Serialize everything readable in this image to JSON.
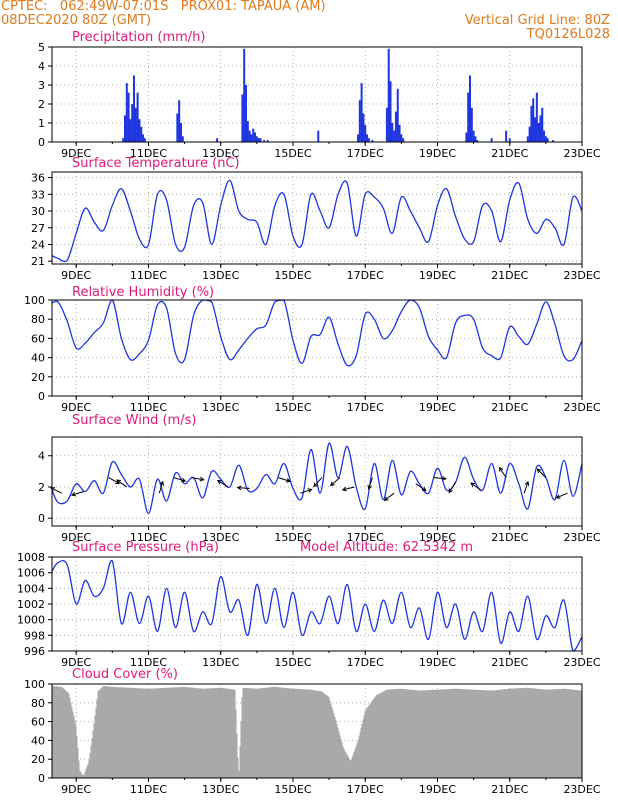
{
  "header": {
    "line1": "CPTEC:   062:49W-07:01S   PROX01: TAPAUA (AM)",
    "line2": "08DEC2020 80Z (GMT)",
    "vgrid": "Vertical Grid Line: 80Z",
    "code": "TQ0126L028"
  },
  "colors": {
    "title": "#e0187a",
    "header": "#e07a1c",
    "series": "#1f35e0",
    "cloud": "#a9a9a9"
  },
  "x_ticks": [
    "9DEC",
    "11DEC",
    "13DEC",
    "15DEC",
    "17DEC",
    "19DEC",
    "21DEC",
    "23DEC"
  ],
  "chart_data": [
    {
      "id": "precip",
      "type": "bar",
      "title": "Precipitation (mm/h)",
      "extra_label": "",
      "x_unit": "day of Dec 2020 (from 08DEC 08Z)",
      "xlim": [
        8.33,
        23.0
      ],
      "ylim": [
        0,
        5
      ],
      "yticks": [
        0,
        1,
        2,
        3,
        4,
        5
      ],
      "grid": true,
      "series": [
        {
          "x": [
            10.3,
            10.35,
            10.4,
            10.45,
            10.5,
            10.55,
            10.6,
            10.65,
            10.7,
            10.75,
            10.8,
            10.85,
            10.9,
            11.8,
            11.85,
            11.9,
            11.95,
            12.9,
            13.6,
            13.65,
            13.7,
            13.75,
            13.8,
            13.85,
            13.9,
            13.95,
            14.0,
            14.05,
            14.1,
            14.2,
            14.3,
            15.7,
            16.8,
            16.85,
            16.9,
            16.95,
            17.0,
            17.05,
            17.1,
            17.2,
            17.6,
            17.65,
            17.7,
            17.75,
            17.8,
            17.85,
            17.9,
            17.95,
            18.0,
            18.05,
            19.8,
            19.85,
            19.9,
            19.95,
            20.0,
            20.05,
            20.1,
            20.5,
            20.9,
            21.0,
            21.5,
            21.55,
            21.6,
            21.65,
            21.7,
            21.75,
            21.8,
            21.85,
            21.9,
            21.95,
            22.0,
            22.05,
            22.2
          ],
          "y": [
            0.2,
            1.4,
            3.1,
            2.6,
            1.2,
            2.0,
            3.5,
            1.8,
            2.6,
            1.2,
            0.8,
            0.4,
            0.2,
            1.5,
            2.2,
            1.0,
            0.3,
            0.2,
            2.5,
            4.9,
            3.0,
            1.1,
            0.6,
            0.4,
            0.7,
            0.5,
            0.3,
            0.2,
            0.2,
            0.1,
            0.1,
            0.6,
            0.4,
            2.2,
            3.1,
            1.5,
            0.9,
            0.4,
            0.2,
            0.1,
            1.8,
            4.9,
            3.2,
            1.0,
            0.6,
            1.6,
            2.8,
            0.9,
            0.4,
            0.2,
            0.5,
            2.6,
            3.5,
            1.8,
            0.6,
            0.3,
            0.1,
            0.2,
            0.6,
            0.2,
            0.3,
            0.8,
            1.9,
            2.3,
            1.3,
            2.6,
            1.0,
            1.4,
            1.8,
            0.6,
            0.3,
            0.2,
            0.1
          ]
        }
      ]
    },
    {
      "id": "temp",
      "type": "line",
      "title": "Surface Temperature (nC)",
      "extra_label": "",
      "x_unit": "day of Dec 2020",
      "xlim": [
        8.33,
        23.0
      ],
      "ylim": [
        20.5,
        37
      ],
      "yticks": [
        21,
        24,
        27,
        30,
        33,
        36
      ],
      "grid": true,
      "series": [
        {
          "x": [
            8.33,
            8.5,
            8.75,
            9.0,
            9.25,
            9.5,
            9.75,
            10.0,
            10.25,
            10.5,
            10.75,
            11.0,
            11.25,
            11.5,
            11.75,
            12.0,
            12.25,
            12.5,
            12.75,
            13.0,
            13.25,
            13.5,
            13.75,
            14.0,
            14.25,
            14.5,
            14.75,
            15.0,
            15.25,
            15.5,
            15.75,
            16.0,
            16.25,
            16.5,
            16.75,
            17.0,
            17.25,
            17.5,
            17.75,
            18.0,
            18.25,
            18.5,
            18.75,
            19.0,
            19.25,
            19.5,
            19.75,
            20.0,
            20.25,
            20.5,
            20.75,
            21.0,
            21.25,
            21.5,
            21.75,
            22.0,
            22.25,
            22.5,
            22.75,
            23.0
          ],
          "y": [
            22,
            21.5,
            21.2,
            26,
            30.5,
            28,
            26.5,
            31,
            34,
            30,
            25,
            24,
            33,
            32,
            24,
            23.5,
            31,
            31.5,
            24,
            31,
            35.5,
            30,
            28.5,
            28,
            24,
            31,
            33,
            25.5,
            24,
            33,
            30,
            27,
            33,
            35,
            25.5,
            33,
            32.5,
            30.5,
            26,
            32.5,
            30,
            27,
            24.5,
            31,
            34,
            29,
            25,
            24.5,
            31,
            30,
            24.5,
            32,
            35,
            28.5,
            26,
            28.5,
            27,
            24,
            32.5,
            30
          ]
        }
      ]
    },
    {
      "id": "rh",
      "type": "line",
      "title": "Relative Humidity (%)",
      "extra_label": "",
      "x_unit": "day of Dec 2020",
      "xlim": [
        8.33,
        23.0
      ],
      "ylim": [
        0,
        100
      ],
      "yticks": [
        0,
        20,
        40,
        60,
        80,
        100
      ],
      "grid": true,
      "series": [
        {
          "x": [
            8.33,
            8.5,
            8.75,
            9.0,
            9.25,
            9.5,
            9.75,
            10.0,
            10.25,
            10.5,
            10.75,
            11.0,
            11.25,
            11.5,
            11.75,
            12.0,
            12.25,
            12.5,
            12.75,
            13.0,
            13.25,
            13.5,
            13.75,
            14.0,
            14.25,
            14.5,
            14.75,
            15.0,
            15.25,
            15.5,
            15.75,
            16.0,
            16.25,
            16.5,
            16.75,
            17.0,
            17.25,
            17.5,
            17.75,
            18.0,
            18.25,
            18.5,
            18.75,
            19.0,
            19.25,
            19.5,
            19.75,
            20.0,
            20.25,
            20.5,
            20.75,
            21.0,
            21.25,
            21.5,
            21.75,
            22.0,
            22.25,
            22.5,
            22.75,
            23.0
          ],
          "y": [
            97,
            98,
            78,
            50,
            55,
            66,
            76,
            100,
            60,
            38,
            44,
            58,
            95,
            92,
            44,
            38,
            84,
            100,
            98,
            62,
            38,
            48,
            60,
            70,
            74,
            98,
            100,
            58,
            34,
            62,
            64,
            82,
            54,
            32,
            42,
            85,
            80,
            60,
            68,
            88,
            100,
            92,
            62,
            48,
            40,
            76,
            84,
            80,
            50,
            42,
            40,
            72,
            62,
            54,
            75,
            98,
            75,
            42,
            38,
            58
          ]
        }
      ]
    },
    {
      "id": "wind",
      "type": "line",
      "title": "Surface Wind (m/s)",
      "extra_label": "",
      "x_unit": "day of Dec 2020",
      "xlim": [
        8.33,
        23.0
      ],
      "ylim": [
        -0.5,
        5.2
      ],
      "yticks": [
        0,
        2,
        4
      ],
      "grid": true,
      "series": [
        {
          "x": [
            8.33,
            8.5,
            8.75,
            9.0,
            9.25,
            9.5,
            9.75,
            10.0,
            10.25,
            10.5,
            10.75,
            11.0,
            11.25,
            11.5,
            11.75,
            12.0,
            12.25,
            12.5,
            12.75,
            13.0,
            13.25,
            13.5,
            13.75,
            14.0,
            14.25,
            14.5,
            14.75,
            15.0,
            15.25,
            15.5,
            15.75,
            16.0,
            16.25,
            16.5,
            16.75,
            17.0,
            17.25,
            17.5,
            17.75,
            18.0,
            18.25,
            18.5,
            18.75,
            19.0,
            19.25,
            19.5,
            19.75,
            20.0,
            20.25,
            20.5,
            20.75,
            21.0,
            21.25,
            21.5,
            21.75,
            22.0,
            22.25,
            22.5,
            22.75,
            23.0
          ],
          "y": [
            1.8,
            1.0,
            1.1,
            2.2,
            1.7,
            2.4,
            1.6,
            3.6,
            2.8,
            2.0,
            2.5,
            0.3,
            2.5,
            1.1,
            2.9,
            2.2,
            2.6,
            1.3,
            3.0,
            2.5,
            2.0,
            3.4,
            1.8,
            1.9,
            2.8,
            2.2,
            3.5,
            1.9,
            1.3,
            4.4,
            1.6,
            4.8,
            2.6,
            4.6,
            2.0,
            0.6,
            3.5,
            1.2,
            3.7,
            1.5,
            3.0,
            2.2,
            1.6,
            3.2,
            1.8,
            2.3,
            3.9,
            2.5,
            1.8,
            3.5,
            1.6,
            3.5,
            2.2,
            0.6,
            3.3,
            2.6,
            1.2,
            3.7,
            1.4,
            3.5
          ]
        }
      ],
      "arrows": {
        "x": [
          8.6,
          9.2,
          9.9,
          10.4,
          11.3,
          11.7,
          12.2,
          13.2,
          13.8,
          14.6,
          15.2,
          15.8,
          16.3,
          16.7,
          17.2,
          17.8,
          18.4,
          18.9,
          19.5,
          20.2,
          20.9,
          21.4,
          22.0,
          22.6
        ],
        "u": [
          -1,
          -1,
          0.7,
          -1,
          0.3,
          1,
          1.1,
          -0.8,
          -1.3,
          1.2,
          1.2,
          -0.8,
          -0.7,
          -0.8,
          -0.3,
          -0.8,
          0.6,
          1,
          -0.5,
          -0.7,
          -0.6,
          0.3,
          -0.3,
          -1.2
        ],
        "v": [
          0.5,
          -0.3,
          -0.4,
          0.7,
          1,
          -0.3,
          -0.2,
          0.5,
          0.1,
          -0.4,
          0.4,
          -0.9,
          -0.6,
          -0.2,
          -0.9,
          -0.6,
          -0.4,
          -0.1,
          -0.8,
          0.5,
          0.9,
          0.9,
          0.3,
          -0.5
        ]
      }
    },
    {
      "id": "press",
      "type": "line",
      "title": "Surface Pressure (hPa)",
      "extra_label": "Model Altitude: 62.5342 m",
      "x_unit": "day of Dec 2020",
      "xlim": [
        8.33,
        23.0
      ],
      "ylim": [
        996,
        1008
      ],
      "yticks": [
        996,
        998,
        1000,
        1002,
        1004,
        1006,
        1008
      ],
      "grid": true,
      "series": [
        {
          "x": [
            8.33,
            8.5,
            8.75,
            9.0,
            9.25,
            9.5,
            9.75,
            10.0,
            10.25,
            10.5,
            10.75,
            11.0,
            11.25,
            11.5,
            11.75,
            12.0,
            12.25,
            12.5,
            12.75,
            13.0,
            13.25,
            13.5,
            13.75,
            14.0,
            14.25,
            14.5,
            14.75,
            15.0,
            15.25,
            15.5,
            15.75,
            16.0,
            16.25,
            16.5,
            16.75,
            17.0,
            17.25,
            17.5,
            17.75,
            18.0,
            18.25,
            18.5,
            18.75,
            19.0,
            19.25,
            19.5,
            19.75,
            20.0,
            20.25,
            20.5,
            20.75,
            21.0,
            21.25,
            21.5,
            21.75,
            22.0,
            22.25,
            22.5,
            22.75,
            23.0
          ],
          "y": [
            1006.2,
            1007.3,
            1007.0,
            1002.0,
            1005.0,
            1003.0,
            1004.0,
            1007.5,
            999.5,
            1003.5,
            999.5,
            1003.0,
            998.5,
            1004.0,
            999.0,
            1003.5,
            998.5,
            1001.0,
            999.5,
            1005.5,
            1001.0,
            1002.5,
            998.0,
            1004.5,
            999.5,
            1004.0,
            999.0,
            1003.5,
            998.0,
            1001.0,
            999.5,
            1003.0,
            999.5,
            1004.5,
            998.5,
            1002.0,
            998.5,
            1002.5,
            999.5,
            1003.5,
            999.0,
            1001.5,
            997.5,
            1003.5,
            999.0,
            1002.0,
            997.5,
            1001.0,
            998.5,
            1003.5,
            997.0,
            1001.0,
            998.5,
            1003.0,
            997.5,
            1000.5,
            999.0,
            1002.5,
            996.0,
            997.8
          ]
        }
      ]
    },
    {
      "id": "cloud",
      "type": "area",
      "title": "Cloud Cover (%)",
      "extra_label": "",
      "x_unit": "day of Dec 2020",
      "xlim": [
        8.33,
        23.0
      ],
      "ylim": [
        0,
        100
      ],
      "yticks": [
        0,
        20,
        40,
        60,
        80,
        100
      ],
      "grid": true,
      "series": [
        {
          "x": [
            8.33,
            8.6,
            8.8,
            9.0,
            9.1,
            9.2,
            9.35,
            9.5,
            9.6,
            9.75,
            10.0,
            10.5,
            11.0,
            11.5,
            12.0,
            12.5,
            13.0,
            13.4,
            13.5,
            13.6,
            14.0,
            14.5,
            15.0,
            15.5,
            15.8,
            16.0,
            16.2,
            16.4,
            16.6,
            16.8,
            17.0,
            17.3,
            17.6,
            18.0,
            18.5,
            19.0,
            19.5,
            20.0,
            20.5,
            21.0,
            21.5,
            22.0,
            22.5,
            23.0
          ],
          "y": [
            98,
            97,
            90,
            55,
            8,
            2,
            18,
            60,
            92,
            98,
            97,
            96,
            95,
            96,
            97,
            95,
            96,
            94,
            2,
            96,
            95,
            97,
            95,
            94,
            92,
            86,
            60,
            32,
            18,
            40,
            72,
            88,
            94,
            95,
            93,
            94,
            95,
            94,
            93,
            95,
            96,
            94,
            95,
            93
          ]
        }
      ]
    }
  ]
}
